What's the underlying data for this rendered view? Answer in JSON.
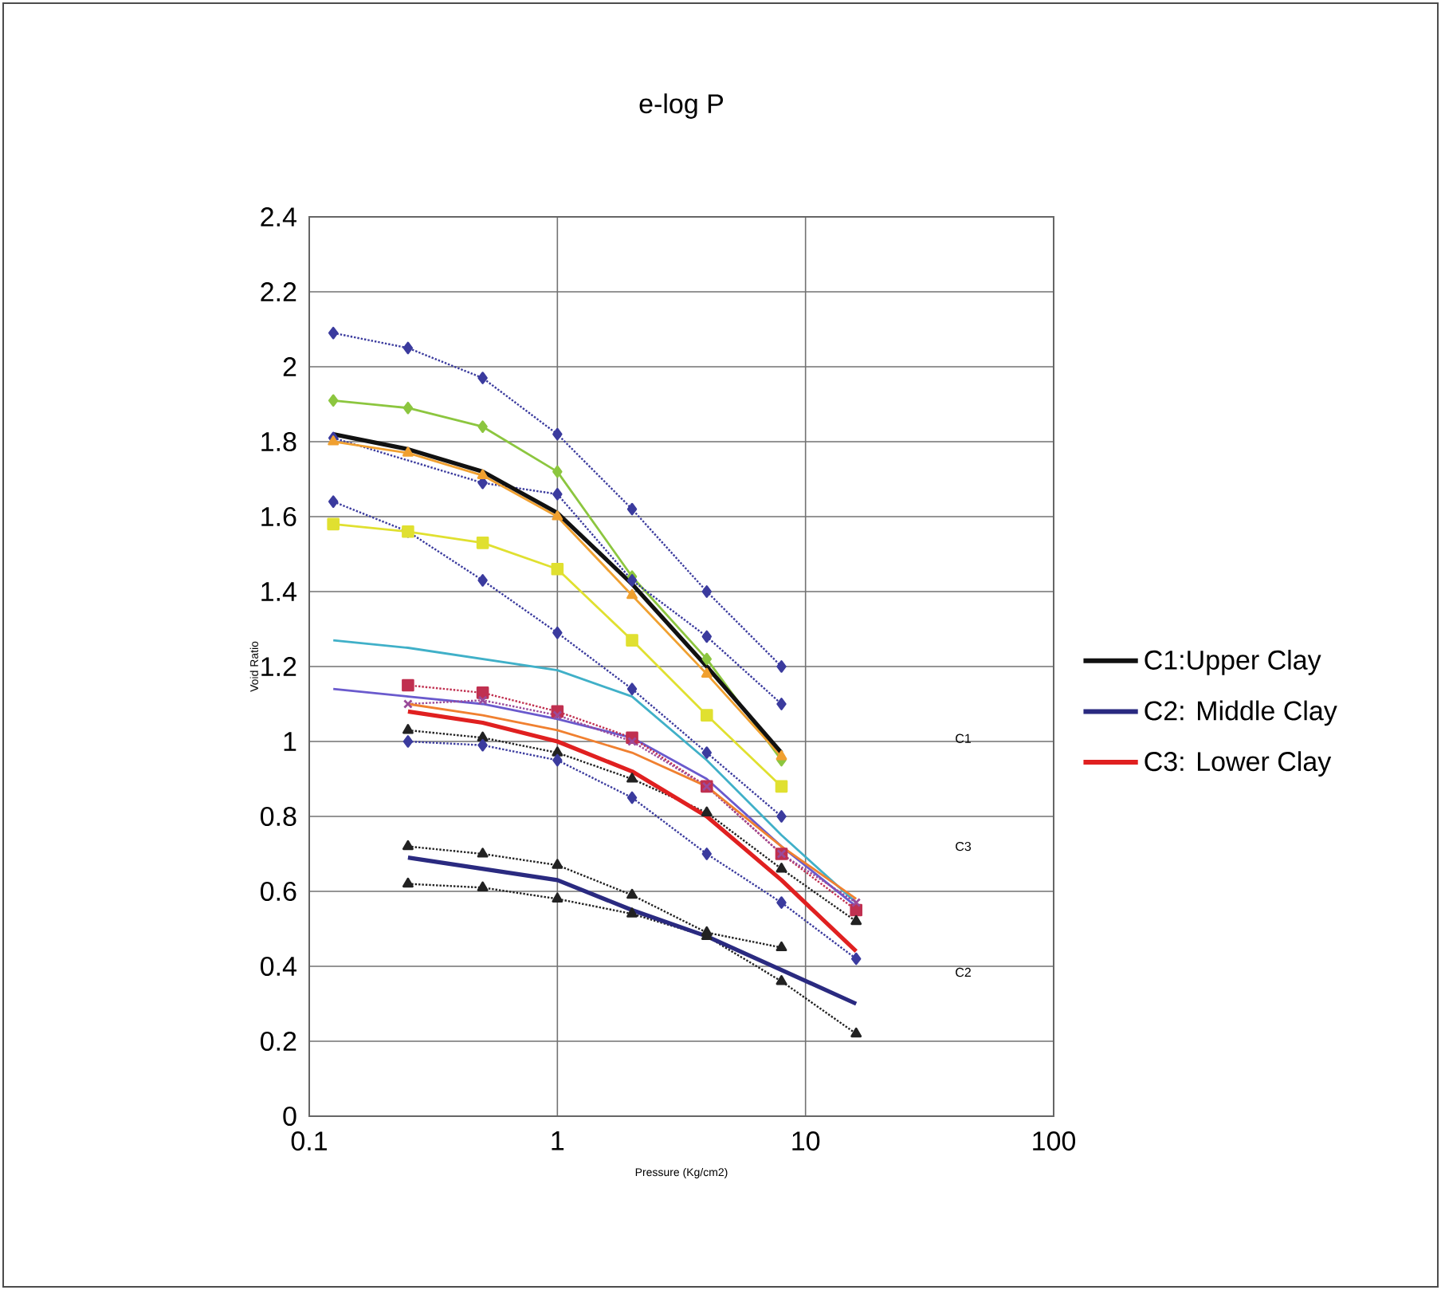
{
  "chart_data": {
    "type": "line",
    "title": "e-log P",
    "xlabel": "Pressure (Kg/cm2)",
    "ylabel": "Void Ratio",
    "log": "x",
    "grid": true,
    "legend": "right",
    "xlim": [
      0.1,
      100
    ],
    "xticks": [
      0.1,
      1,
      10,
      100
    ],
    "ylim": [
      0,
      2.4
    ],
    "yticks": [
      0,
      0.2,
      0.4,
      0.6,
      0.8,
      1,
      1.2,
      1.4,
      1.6,
      1.8,
      2,
      2.2,
      2.4
    ],
    "x": [
      0.125,
      0.25,
      0.5,
      1,
      2,
      4,
      8,
      16
    ],
    "series": [
      {
        "color": "#3b3b9e",
        "marker": "diamond",
        "line_style": "dotted",
        "values": [
          2.09,
          2.05,
          1.97,
          1.82,
          1.62,
          1.4,
          1.2,
          null
        ]
      },
      {
        "color": "#8cc63f",
        "marker": "diamond",
        "line_style": "solid",
        "values": [
          1.91,
          1.89,
          1.84,
          1.72,
          1.44,
          1.22,
          0.95,
          null
        ]
      },
      {
        "color": "#3b3b9e",
        "marker": "diamond",
        "line_style": "dotted",
        "values": [
          1.81,
          null,
          1.69,
          1.66,
          1.43,
          1.28,
          1.1,
          null
        ]
      },
      {
        "color": "#f0a030",
        "marker": "triangle",
        "line_style": "solid",
        "values": [
          1.8,
          1.77,
          1.71,
          1.6,
          1.39,
          1.18,
          0.96,
          null
        ]
      },
      {
        "color": "#3b3b9e",
        "marker": "diamond",
        "line_style": "dotted",
        "values": [
          1.64,
          1.56,
          1.43,
          1.29,
          1.14,
          0.97,
          0.8,
          null
        ]
      },
      {
        "color": "#e0e030",
        "marker": "square",
        "line_style": "solid",
        "values": [
          1.58,
          1.56,
          1.53,
          1.46,
          1.27,
          1.07,
          0.88,
          null
        ]
      },
      {
        "color": "#40b0c8",
        "marker": "none",
        "line_style": "solid",
        "values": [
          1.27,
          1.25,
          1.22,
          1.19,
          1.12,
          0.95,
          0.75,
          0.57
        ]
      },
      {
        "color": "#6a5acd",
        "marker": "none",
        "line_style": "solid",
        "values": [
          1.14,
          1.12,
          1.1,
          1.06,
          1.01,
          0.9,
          0.72,
          0.56
        ]
      },
      {
        "color": "#c03050",
        "marker": "square",
        "line_style": "dotted",
        "values": [
          null,
          1.15,
          1.13,
          1.08,
          1.01,
          0.88,
          0.7,
          0.55
        ]
      },
      {
        "color": "#9a4a9a",
        "marker": "cross",
        "line_style": "dotted",
        "values": [
          null,
          1.1,
          1.11,
          1.07,
          1.0,
          0.88,
          0.7,
          0.57
        ]
      },
      {
        "color": "#f08030",
        "marker": "none",
        "line_style": "solid",
        "values": [
          null,
          1.1,
          1.07,
          1.03,
          0.97,
          0.88,
          0.72,
          0.58
        ]
      },
      {
        "color": "#222222",
        "marker": "triangle",
        "line_style": "dotted",
        "values": [
          null,
          1.03,
          1.01,
          0.97,
          0.9,
          0.81,
          0.66,
          0.52
        ]
      },
      {
        "color": "#3b3b9e",
        "marker": "diamond",
        "line_style": "dotted",
        "values": [
          null,
          1.0,
          0.99,
          0.95,
          0.85,
          0.7,
          0.57,
          0.42
        ]
      },
      {
        "color": "#222222",
        "marker": "triangle",
        "line_style": "dotted",
        "values": [
          null,
          0.72,
          0.7,
          0.67,
          0.59,
          0.49,
          0.45,
          null
        ]
      },
      {
        "color": "#222222",
        "marker": "triangle",
        "line_style": "dotted",
        "values": [
          null,
          0.62,
          0.61,
          0.58,
          0.54,
          0.48,
          0.36,
          0.22
        ]
      },
      {
        "name": "C1:Upper Clay",
        "color": "#111111",
        "marker": "none",
        "line_style": "solid",
        "values": [
          1.82,
          1.78,
          1.72,
          1.61,
          1.42,
          1.2,
          0.97,
          null
        ]
      },
      {
        "name": "C2: Middle Clay",
        "color": "#2a2a80",
        "marker": "none",
        "line_style": "solid",
        "values": [
          null,
          0.69,
          0.66,
          0.63,
          0.55,
          0.48,
          0.39,
          0.3
        ]
      },
      {
        "name": "C3: Lower Clay",
        "color": "#e02020",
        "marker": "none",
        "line_style": "solid",
        "values": [
          null,
          1.08,
          1.05,
          1.0,
          0.92,
          0.8,
          0.63,
          0.44
        ]
      }
    ],
    "annotations": [
      "C1",
      "C3",
      "C2"
    ]
  }
}
